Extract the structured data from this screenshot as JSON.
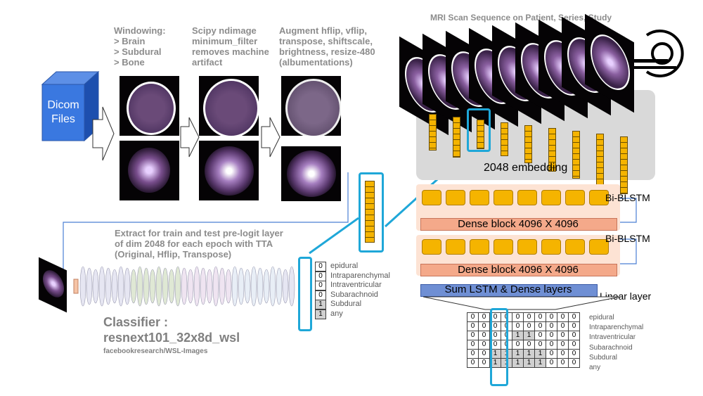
{
  "dicom": {
    "label": "Dicom\nFiles"
  },
  "steps": {
    "windowing": "Windowing:\n > Brain\n > Subdural\n > Bone",
    "filter": "Scipy ndimage\nminimum_filter\nremoves machine\nartifact",
    "augment": "Augment hflip, vflip,\ntranspose, shiftscale,\nbrightness, resize-480\n(albumentations)"
  },
  "extract_text": "Extract for train and test pre-logit layer\nof dim 2048 for each epoch with TTA\n(Original, Hflip, Transpose)",
  "classifier": {
    "title": "Classifier :",
    "model": "resnext101_32x8d_wsl",
    "source": "facebookresearch/WSL-Images"
  },
  "classifier_output": {
    "values": [
      "0",
      "0",
      "0",
      "0",
      "1",
      "1"
    ],
    "labels": [
      "epidural",
      "Intraparenchymal",
      "Intraventricular",
      "Subarachnoid",
      "Subdural",
      "any"
    ]
  },
  "mri": {
    "title": "MRI Scan Sequence on Patient, Series, Study"
  },
  "embedding_label": "2048 embedding",
  "bilstm_label_1": "Bi-BLSTM",
  "bilstm_label_2": "Bi-BLSTM",
  "dense_label_1": "Dense block 4096 X 4096",
  "dense_label_2": "Dense block 4096 X 4096",
  "sum_label": "Sum LSTM & Dense layers",
  "linear_label": "Linear layer",
  "output_grid": {
    "rows": [
      [
        "0",
        "0",
        "0",
        "0",
        "0",
        "0",
        "0",
        "0",
        "0",
        "0"
      ],
      [
        "0",
        "0",
        "0",
        "0",
        "0",
        "0",
        "0",
        "0",
        "0",
        "0"
      ],
      [
        "0",
        "0",
        "0",
        "0",
        "1",
        "1",
        "0",
        "0",
        "0",
        "0"
      ],
      [
        "0",
        "0",
        "0",
        "0",
        "0",
        "0",
        "0",
        "0",
        "0",
        "0"
      ],
      [
        "0",
        "0",
        "1",
        "1",
        "1",
        "1",
        "1",
        "0",
        "0",
        "0"
      ],
      [
        "0",
        "0",
        "1",
        "1",
        "1",
        "1",
        "1",
        "0",
        "0",
        "0"
      ]
    ],
    "labels": [
      "epidural",
      "Intraparenchymal",
      "Intraventricular",
      "Subarachnoid",
      "Subdural",
      "any"
    ]
  },
  "colors": {
    "accent": "#1fa7d8",
    "embed": "#f5b400",
    "dicom": "#2e6bd1",
    "dense": "#f4a98a",
    "sum": "#6f8fd4"
  }
}
